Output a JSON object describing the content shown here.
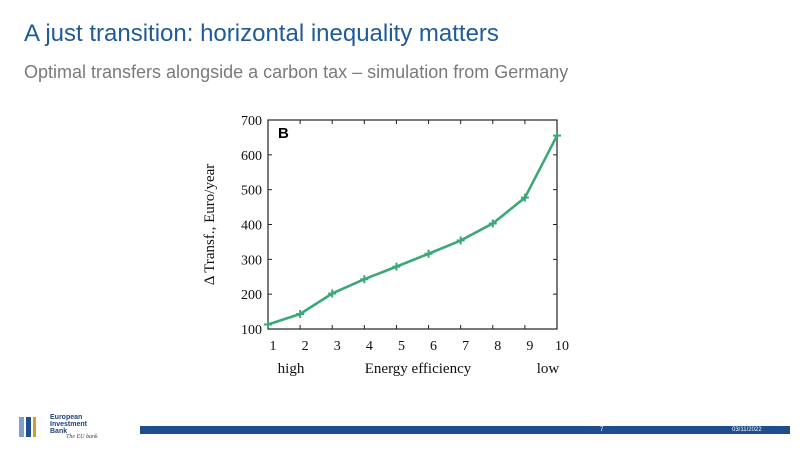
{
  "slide": {
    "title": "A just transition: horizontal inequality matters",
    "subtitle": "Optimal transfers alongside a carbon tax  – simulation from Germany",
    "page_number": "7",
    "date": "03/11/2022"
  },
  "logo": {
    "name": "European\nInvestment\nBank",
    "slogan": "The EU bank",
    "colors": [
      "#1f4e8c",
      "#7da0d0",
      "#c9a227"
    ]
  },
  "chart_data": {
    "type": "line",
    "panel_label": "B",
    "x": [
      1,
      2,
      3,
      4,
      5,
      6,
      7,
      8,
      9,
      10
    ],
    "series": [
      {
        "values": [
          113,
          143,
          202,
          243,
          279,
          316,
          354,
          403,
          477,
          655
        ],
        "color": "#3aa877",
        "marker": "plus"
      }
    ],
    "ylabel": "Δ Transf., Euro/year",
    "xlabel": "Energy efficiency",
    "x_end_labels": {
      "left": "high",
      "right": "low"
    },
    "xlim": [
      1,
      10
    ],
    "ylim": [
      100,
      700
    ],
    "yticks": [
      100,
      200,
      300,
      400,
      500,
      600,
      700
    ],
    "xticks": [
      1,
      2,
      3,
      4,
      5,
      6,
      7,
      8,
      9,
      10
    ],
    "grid": false,
    "legend": "none"
  }
}
